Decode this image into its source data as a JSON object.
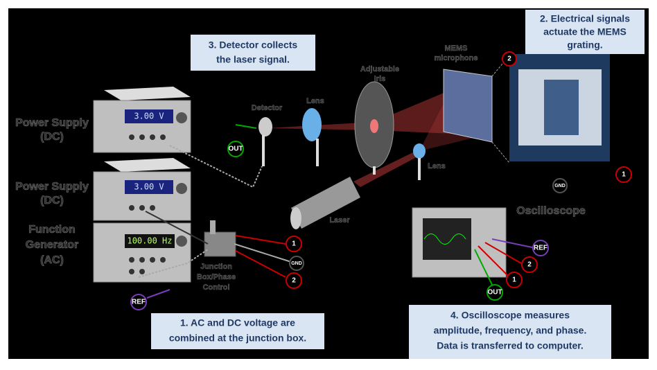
{
  "callouts": [
    {
      "lines": [
        "1. AC and DC voltage are",
        "combined at the junction box."
      ]
    },
    {
      "lines": [
        "2. Electrical signals",
        "actuate the MEMS",
        "grating."
      ]
    },
    {
      "lines": [
        "3. Detector collects",
        "the laser signal."
      ]
    },
    {
      "lines": [
        "4. Oscilloscope measures",
        "amplitude, frequency, and phase.",
        "Data is transferred to computer."
      ]
    }
  ],
  "devices": [
    {
      "lines": [
        "Power Supply",
        "(DC)"
      ],
      "display": "3.00 V"
    },
    {
      "lines": [
        "Power Supply",
        "(DC)"
      ],
      "display": "3.00 V"
    },
    {
      "lines": [
        "Function",
        "Generator",
        "(AC)"
      ],
      "display": "100.00 Hz"
    }
  ],
  "labels": {
    "detector": "Detector",
    "lens1": "Lens",
    "iris": [
      "Adjustable",
      "Iris"
    ],
    "mems": [
      "MEMS",
      "microphone"
    ],
    "lens2": "Lens",
    "laser": "Laser",
    "oscilloscope": "Oscilloscope",
    "junction": [
      "Junction",
      "Box/Phase",
      "Control"
    ]
  },
  "markers": {
    "out_detector": "OUT",
    "one_junction": "1",
    "gnd_junction": "GND",
    "two_junction": "2",
    "ref_generator": "REF",
    "two_mems": "2",
    "one_mems": "1",
    "gnd_mems": "GND",
    "ref_scope": "REF",
    "two_scope": "2",
    "one_scope": "1",
    "out_scope": "OUT"
  }
}
